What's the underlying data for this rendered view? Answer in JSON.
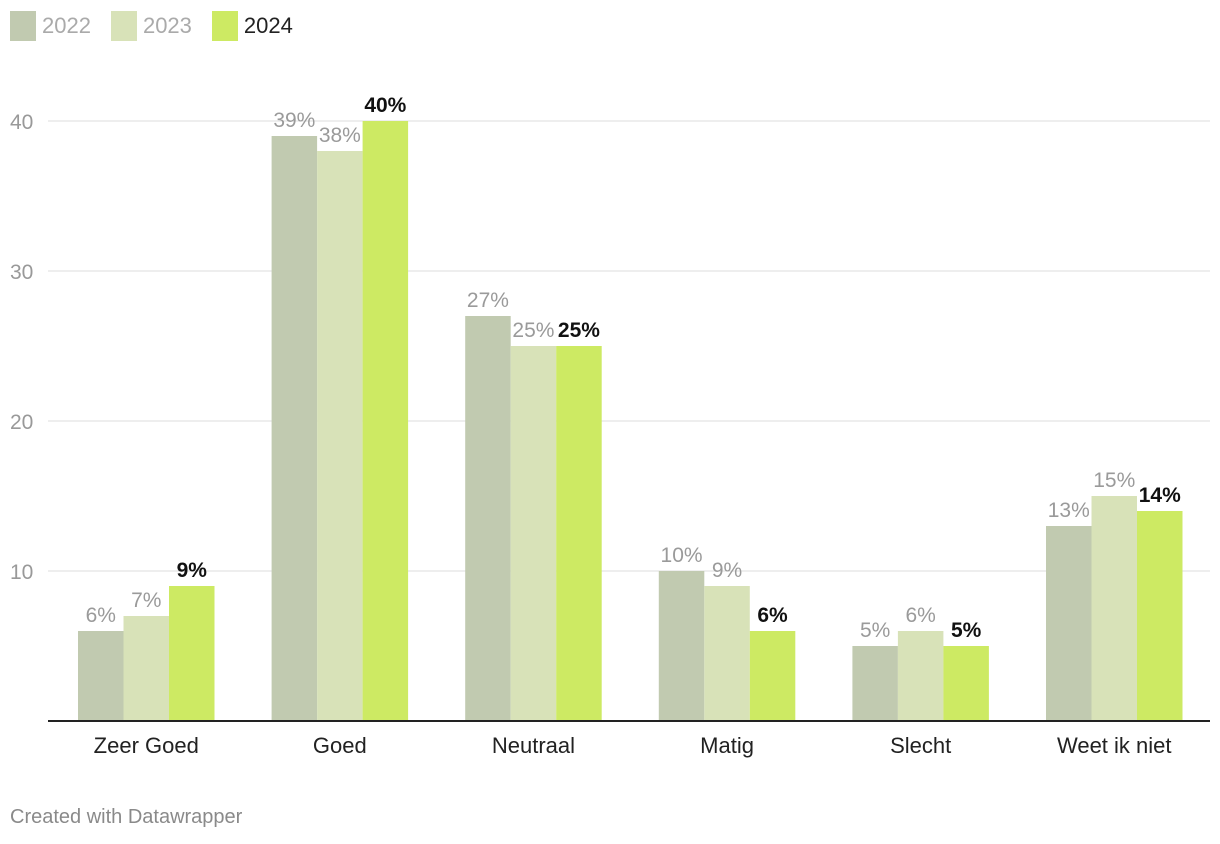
{
  "chart_data": {
    "type": "bar",
    "categories": [
      "Zeer Goed",
      "Goed",
      "Neutraal",
      "Matig",
      "Slecht",
      "Weet ik niet"
    ],
    "series": [
      {
        "name": "2022",
        "values": [
          6,
          39,
          27,
          10,
          5,
          13
        ],
        "labels": [
          "6%",
          "39%",
          "27%",
          "10%",
          "5%",
          "13%"
        ]
      },
      {
        "name": "2023",
        "values": [
          7,
          38,
          25,
          9,
          6,
          15
        ],
        "labels": [
          "7%",
          "38%",
          "25%",
          "9%",
          "6%",
          "15%"
        ]
      },
      {
        "name": "2024",
        "values": [
          9,
          40,
          25,
          6,
          5,
          14
        ],
        "labels": [
          "9%",
          "40%",
          "25%",
          "6%",
          "5%",
          "14%"
        ]
      }
    ],
    "yticks": [
      "10",
      "20",
      "30",
      "40"
    ],
    "ylim": [
      0,
      40
    ],
    "grid": true,
    "legend": "top-left",
    "colors": [
      "#c1cab0",
      "#d8e2b8",
      "#cdea63"
    ],
    "legend_text_colors": [
      "#aaaaaa",
      "#aaaaaa",
      "#222222"
    ],
    "label_colors": [
      "#9a9a9a",
      "#9a9a9a",
      "#111111"
    ],
    "label_bold": [
      false,
      false,
      true
    ]
  },
  "footer": "Created with Datawrapper"
}
